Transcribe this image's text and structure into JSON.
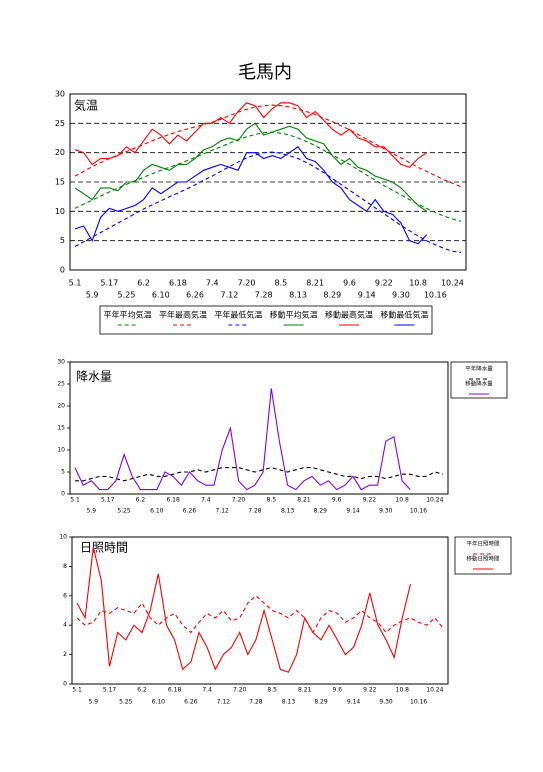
{
  "title": "毛馬内",
  "chart_data": [
    {
      "type": "line",
      "label": "気温",
      "ylim": [
        0,
        30
      ],
      "yticks": [
        0,
        5,
        10,
        15,
        20,
        25,
        30
      ],
      "grid": true,
      "legend": "bottom",
      "categories": [
        "5.1",
        null,
        "5.9",
        null,
        "5.17",
        null,
        "5.25",
        null,
        "6.2",
        null,
        "6.10",
        null,
        "6.18",
        null,
        "6.26",
        null,
        "7.4",
        null,
        "7.12",
        null,
        "7.20",
        null,
        "7.28",
        null,
        "8.5",
        null,
        "8.13",
        null,
        "8.21",
        null,
        "8.29",
        null,
        "9.6",
        null,
        "9.14",
        null,
        "9.22",
        null,
        "9.30",
        null,
        "10.8",
        null,
        "10.16",
        null,
        "10.24",
        null
      ],
      "series": [
        {
          "name": "平年平均気温",
          "color": "#008000",
          "dash": true,
          "values": [
            10.5,
            11.2,
            11.9,
            12.6,
            13.3,
            14,
            14.6,
            15.2,
            15.8,
            16.4,
            17,
            17.5,
            18,
            18.6,
            19.2,
            19.8,
            20.4,
            21,
            21.6,
            22.2,
            22.7,
            23.1,
            23.4,
            23.5,
            23.3,
            23,
            22.5,
            21.9,
            21.2,
            20.4,
            19.6,
            18.8,
            18,
            17.1,
            16.2,
            15.3,
            14.4,
            13.6,
            12.8,
            12,
            11.2,
            10.5,
            9.8,
            9.2,
            8.7,
            8.3
          ]
        },
        {
          "name": "平年最高気温",
          "color": "#ff0000",
          "dash": true,
          "values": [
            16,
            16.8,
            17.6,
            18.3,
            19,
            19.6,
            20.2,
            20.8,
            21.4,
            22,
            22.6,
            23.1,
            23.6,
            24,
            24.4,
            24.8,
            25.2,
            25.7,
            26.3,
            26.9,
            27.4,
            27.8,
            28,
            28.1,
            28,
            27.8,
            27.4,
            27,
            26.5,
            25.9,
            25.3,
            24.6,
            23.9,
            23.1,
            22.3,
            21.5,
            20.7,
            19.9,
            19.1,
            18.3,
            17.5,
            16.8,
            16.1,
            15.4,
            14.8,
            14.2
          ]
        },
        {
          "name": "平年最低気温",
          "color": "#0000ff",
          "dash": true,
          "values": [
            4,
            4.8,
            5.6,
            6.4,
            7.2,
            8,
            8.8,
            9.6,
            10.4,
            11.1,
            11.8,
            12.5,
            13.1,
            13.8,
            14.5,
            15.3,
            16,
            16.8,
            17.6,
            18.4,
            19.1,
            19.6,
            20,
            20.1,
            19.9,
            19.5,
            19,
            18.3,
            17.5,
            16.6,
            15.6,
            14.6,
            13.6,
            12.6,
            11.6,
            10.6,
            9.6,
            8.6,
            7.6,
            6.7,
            5.8,
            5,
            4.3,
            3.7,
            3.2,
            3
          ]
        },
        {
          "name": "移動平均気温",
          "color": "#008000",
          "dash": false,
          "values": [
            14,
            13,
            12,
            14,
            14,
            13.5,
            15,
            15,
            17,
            18,
            17.5,
            17,
            18,
            18,
            19,
            20.5,
            21,
            22,
            22.5,
            22,
            24,
            25,
            23,
            23.5,
            24,
            24.5,
            24,
            22.5,
            22,
            21.5,
            19.5,
            18,
            19,
            17.5,
            17,
            16,
            15.5,
            15,
            14,
            12.5,
            11,
            10,
            null,
            null,
            null,
            null
          ]
        },
        {
          "name": "移動最高気温",
          "color": "#ff0000",
          "dash": false,
          "values": [
            20.5,
            20,
            18,
            19,
            19,
            19.5,
            21,
            20,
            22,
            24,
            23,
            21.5,
            23,
            22,
            23.5,
            25,
            25,
            26,
            25,
            27,
            28.5,
            28,
            26,
            27.5,
            28.5,
            28.5,
            28,
            26,
            27,
            25.5,
            24,
            23,
            24,
            22.5,
            22,
            21,
            21,
            19.5,
            18,
            17.5,
            19,
            20,
            null,
            null,
            null,
            null
          ]
        },
        {
          "name": "移動最低気温",
          "color": "#0000ff",
          "dash": false,
          "values": [
            7,
            7.5,
            5,
            9,
            10.5,
            10,
            10.5,
            11,
            12,
            14,
            13,
            14,
            15,
            15,
            16,
            17,
            17.5,
            18,
            17.5,
            17,
            20,
            20,
            19,
            19.5,
            19,
            20,
            21,
            19,
            18.5,
            17,
            15,
            14,
            12,
            11,
            10,
            12,
            10,
            9.5,
            8,
            5,
            4.5,
            6,
            null,
            null,
            null,
            null
          ]
        }
      ]
    },
    {
      "type": "line",
      "label": "降水量",
      "ylim": [
        0,
        30
      ],
      "yticks": [
        0,
        5,
        10,
        15,
        20,
        25,
        30
      ],
      "grid": false,
      "legend": "right",
      "categories": [
        "5.1",
        null,
        "5.9",
        null,
        "5.17",
        null,
        "5.25",
        null,
        "6.2",
        null,
        "6.10",
        null,
        "6.18",
        null,
        "6.26",
        null,
        "7.4",
        null,
        "7.12",
        null,
        "7.20",
        null,
        "7.28",
        null,
        "8.5",
        null,
        "8.13",
        null,
        "8.21",
        null,
        "8.29",
        null,
        "9.6",
        null,
        "9.14",
        null,
        "9.22",
        null,
        "9.30",
        null,
        "10.8",
        null,
        "10.16",
        null,
        "10.24",
        null
      ],
      "series": [
        {
          "name": "平年降水量",
          "color": "#000000",
          "dash": true,
          "values": [
            3,
            3,
            3.5,
            4,
            4,
            3.5,
            3,
            3.5,
            4,
            4.5,
            4,
            4,
            4.5,
            5,
            5,
            5.5,
            5,
            5.5,
            6,
            6,
            6,
            5.5,
            5,
            5.5,
            6,
            5.5,
            5,
            5.5,
            6,
            6,
            5.5,
            5,
            4.5,
            4,
            4,
            3.5,
            4,
            4,
            3.5,
            4,
            4.5,
            4.5,
            4,
            4,
            5,
            4.5
          ]
        },
        {
          "name": "移動降水量",
          "color": "#8000ff",
          "dash": false,
          "values": [
            6,
            2,
            3,
            1,
            1,
            3,
            9,
            4,
            1,
            1,
            1,
            5,
            4,
            2,
            5,
            3,
            2,
            2,
            10,
            15,
            3,
            1,
            2,
            5,
            24,
            12,
            2,
            1,
            3,
            4,
            2,
            3,
            1,
            2,
            4,
            1,
            2,
            2,
            12,
            13,
            3,
            1,
            null,
            null,
            null,
            null
          ]
        }
      ]
    },
    {
      "type": "line",
      "label": "日照時間",
      "ylim": [
        0,
        10
      ],
      "yticks": [
        0,
        2,
        4,
        6,
        8,
        10
      ],
      "grid": false,
      "legend": "right",
      "categories": [
        "5.1",
        null,
        "5.9",
        null,
        "5.17",
        null,
        "5.25",
        null,
        "6.2",
        null,
        "6.10",
        null,
        "6.18",
        null,
        "6.26",
        null,
        "7.4",
        null,
        "7.12",
        null,
        "7.20",
        null,
        "7.28",
        null,
        "8.5",
        null,
        "8.13",
        null,
        "8.21",
        null,
        "8.29",
        null,
        "9.6",
        null,
        "9.14",
        null,
        "9.22",
        null,
        "9.30",
        null,
        "10.8",
        null,
        "10.16",
        null,
        "10.24",
        null
      ],
      "series": [
        {
          "name": "平年日照時間",
          "color": "#ff0000",
          "dash": true,
          "values": [
            4.5,
            4,
            4.2,
            5,
            4.8,
            5.2,
            5,
            4.8,
            5.5,
            4.5,
            4,
            4.5,
            4.8,
            4,
            3.5,
            4.2,
            4.8,
            4.5,
            5,
            4.3,
            4.5,
            5.5,
            6,
            5.5,
            5,
            4.8,
            4.5,
            5,
            4.5,
            3.5,
            4.5,
            5,
            4.8,
            4.2,
            4.5,
            5,
            4.5,
            4.2,
            3.5,
            4,
            4.3,
            4.5,
            4.2,
            4,
            4.5,
            3.8
          ]
        },
        {
          "name": "移動日照時間",
          "color": "#ff0000",
          "dash": false,
          "values": [
            5.5,
            4.5,
            9.3,
            7,
            1.2,
            3.5,
            3,
            4,
            3.5,
            5,
            7.5,
            4,
            3,
            1,
            1.5,
            3.5,
            2.5,
            1,
            2,
            2.5,
            3.5,
            2,
            3,
            5,
            3,
            1,
            0.8,
            2,
            4.5,
            3.5,
            3,
            4,
            3,
            2,
            2.5,
            4,
            6.2,
            4,
            3,
            1.8,
            4.5,
            6.8,
            null,
            null,
            null,
            null
          ]
        }
      ]
    }
  ]
}
